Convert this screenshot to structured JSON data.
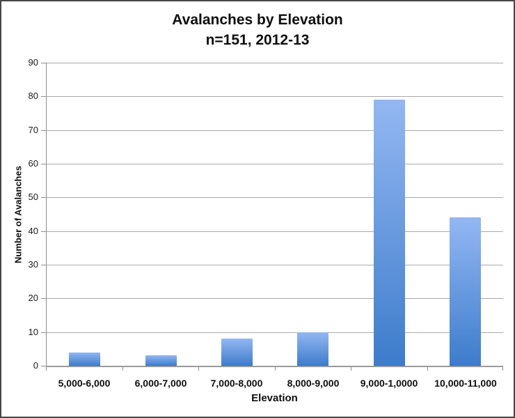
{
  "window": {
    "background": "#ffffff",
    "frame_border_color": "#474747"
  },
  "chart_data": {
    "type": "bar",
    "title": "Avalanches by Elevation",
    "subtitle": "n=151, 2012-13",
    "categories": [
      "5,000-6,000",
      "6,000-7,000",
      "7,000-8,000",
      "8,000-9,000",
      "9,000-1,0000",
      "10,000-11,000"
    ],
    "values": [
      4,
      3,
      8,
      10,
      79,
      44
    ],
    "xlabel": "Elevation",
    "ylabel": "Number of Avalanches",
    "ylim": [
      0,
      90
    ],
    "yticks": [
      0,
      10,
      20,
      30,
      40,
      50,
      60,
      70,
      80,
      90
    ],
    "grid": true,
    "legend": "none",
    "colors": {
      "bar_gradient_top": "#93b7f2",
      "bar_gradient_bottom": "#3d7ccb",
      "gridline": "#a9a9a9",
      "axis": "#8e8e8e",
      "text": "#0e0e0e"
    }
  }
}
